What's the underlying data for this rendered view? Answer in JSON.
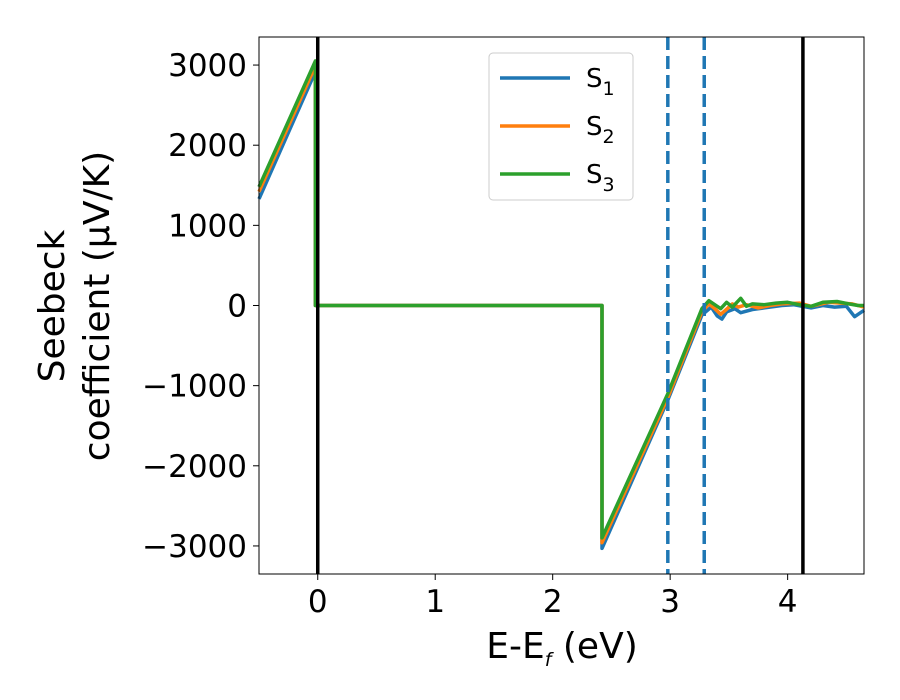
{
  "chart_data": {
    "type": "line",
    "xlabel": "E-E",
    "xlabel_sub": "f",
    "xlabel_unit": " (eV)",
    "ylabel_line1": "Seebeck",
    "ylabel_line2": "coefficient  (μV/K)",
    "xlim": [
      -0.5,
      4.65
    ],
    "ylim": [
      -3350,
      3350
    ],
    "xticks": [
      0,
      1,
      2,
      3,
      4
    ],
    "xtick_labels": [
      "0",
      "1",
      "2",
      "3",
      "4"
    ],
    "yticks": [
      -3000,
      -2000,
      -1000,
      0,
      1000,
      2000,
      3000
    ],
    "ytick_labels": [
      "−3000",
      "−2000",
      "−1000",
      "0",
      "1000",
      "2000",
      "3000"
    ],
    "vlines_solid": [
      0.0,
      4.13
    ],
    "vlines_dashed": [
      2.98,
      3.29
    ],
    "legend_position": "top-center",
    "series": [
      {
        "name": "S",
        "sub": "1",
        "color": "#1f77b4",
        "points": [
          [
            -0.5,
            1330
          ],
          [
            -0.02,
            2920
          ],
          [
            -0.02,
            0
          ],
          [
            2.42,
            0
          ],
          [
            2.42,
            -3030
          ],
          [
            2.98,
            -1180
          ],
          [
            3.27,
            -120
          ],
          [
            3.35,
            -20
          ],
          [
            3.4,
            -130
          ],
          [
            3.44,
            -170
          ],
          [
            3.48,
            -80
          ],
          [
            3.55,
            -40
          ],
          [
            3.6,
            -90
          ],
          [
            3.7,
            -50
          ],
          [
            3.8,
            -30
          ],
          [
            3.95,
            0
          ],
          [
            4.05,
            10
          ],
          [
            4.2,
            -30
          ],
          [
            4.3,
            0
          ],
          [
            4.4,
            -20
          ],
          [
            4.5,
            -10
          ],
          [
            4.57,
            -140
          ],
          [
            4.65,
            -60
          ]
        ]
      },
      {
        "name": "S",
        "sub": "2",
        "color": "#ff7f0e",
        "points": [
          [
            -0.5,
            1420
          ],
          [
            -0.02,
            2990
          ],
          [
            -0.02,
            0
          ],
          [
            2.42,
            0
          ],
          [
            2.42,
            -2960
          ],
          [
            2.98,
            -1150
          ],
          [
            3.27,
            -80
          ],
          [
            3.33,
            20
          ],
          [
            3.38,
            -40
          ],
          [
            3.43,
            -110
          ],
          [
            3.47,
            -60
          ],
          [
            3.53,
            20
          ],
          [
            3.58,
            -20
          ],
          [
            3.65,
            10
          ],
          [
            3.75,
            -30
          ],
          [
            3.85,
            0
          ],
          [
            3.95,
            20
          ],
          [
            4.1,
            30
          ],
          [
            4.2,
            -10
          ],
          [
            4.35,
            40
          ],
          [
            4.45,
            30
          ],
          [
            4.55,
            20
          ],
          [
            4.65,
            -20
          ]
        ]
      },
      {
        "name": "S",
        "sub": "3",
        "color": "#2ca02c",
        "points": [
          [
            -0.5,
            1480
          ],
          [
            -0.02,
            3050
          ],
          [
            -0.02,
            0
          ],
          [
            2.42,
            0
          ],
          [
            2.42,
            -2900
          ],
          [
            2.98,
            -1100
          ],
          [
            3.27,
            -40
          ],
          [
            3.33,
            60
          ],
          [
            3.38,
            10
          ],
          [
            3.43,
            -40
          ],
          [
            3.48,
            40
          ],
          [
            3.53,
            -20
          ],
          [
            3.6,
            90
          ],
          [
            3.65,
            -10
          ],
          [
            3.7,
            20
          ],
          [
            3.8,
            10
          ],
          [
            3.9,
            30
          ],
          [
            4.0,
            40
          ],
          [
            4.1,
            10
          ],
          [
            4.2,
            -10
          ],
          [
            4.3,
            40
          ],
          [
            4.42,
            50
          ],
          [
            4.52,
            20
          ],
          [
            4.6,
            0
          ],
          [
            4.65,
            0
          ]
        ]
      }
    ]
  }
}
